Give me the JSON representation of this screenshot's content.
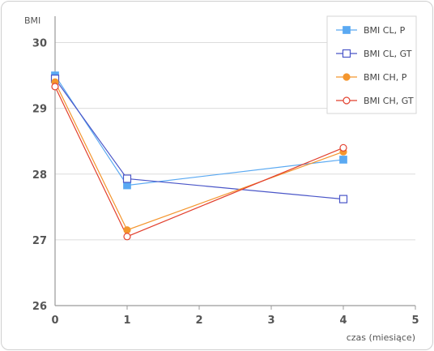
{
  "chart_data": {
    "type": "line",
    "ylabel": "BMI",
    "xlabel": "czas (miesiące)",
    "xlim": [
      0,
      5
    ],
    "ylim": [
      26,
      30.5
    ],
    "xticks": [
      "0",
      "1",
      "2",
      "3",
      "4",
      "5"
    ],
    "yticks": [
      "26",
      "27",
      "28",
      "29",
      "30"
    ],
    "grid": true,
    "legend_position": "top-right",
    "series": [
      {
        "name": "BMI CL, P",
        "color": "#5aa9f2",
        "marker": "square-filled",
        "x": [
          0,
          1,
          4
        ],
        "y": [
          29.5,
          27.83,
          28.22
        ]
      },
      {
        "name": "BMI CL, GT",
        "color": "#4a56c8",
        "marker": "square-open",
        "x": [
          0,
          1,
          4
        ],
        "y": [
          29.45,
          27.93,
          27.62
        ]
      },
      {
        "name": "BMI CH, P",
        "color": "#f4962e",
        "marker": "circle-filled",
        "x": [
          0,
          1,
          4
        ],
        "y": [
          29.4,
          27.15,
          28.34
        ]
      },
      {
        "name": "BMI CH, GT",
        "color": "#e2402e",
        "marker": "circle-open",
        "x": [
          0,
          1,
          4
        ],
        "y": [
          29.33,
          27.05,
          28.4
        ]
      }
    ]
  }
}
